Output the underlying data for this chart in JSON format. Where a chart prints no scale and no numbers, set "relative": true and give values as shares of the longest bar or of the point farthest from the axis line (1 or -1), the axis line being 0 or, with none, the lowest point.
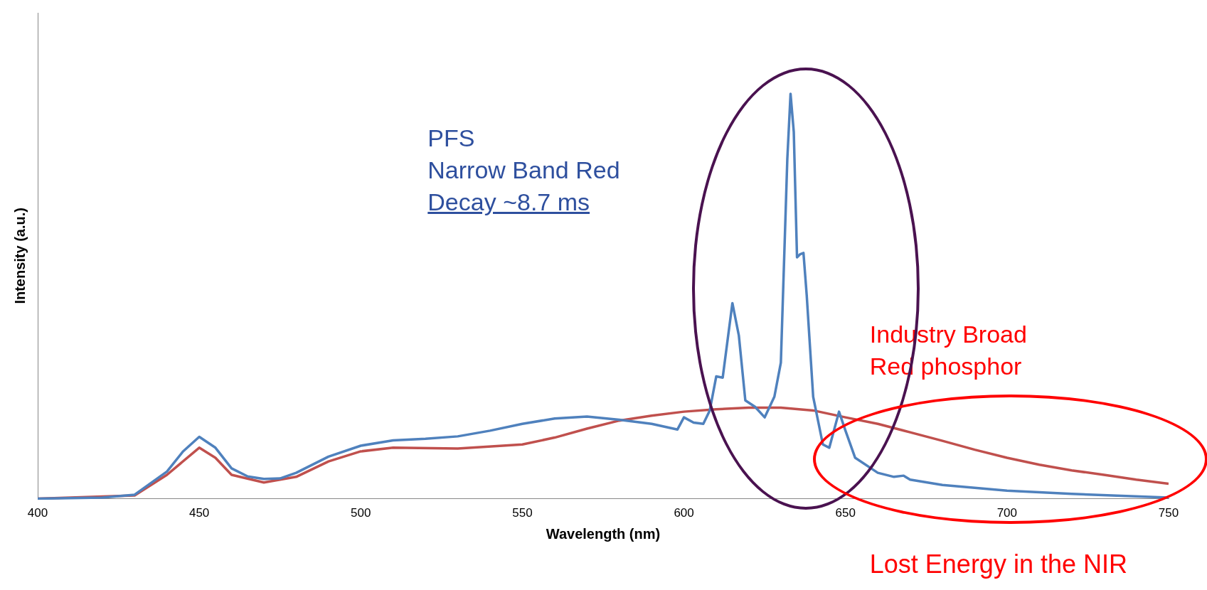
{
  "chart_data": {
    "type": "line",
    "xlabel": "Wavelength (nm)",
    "ylabel": "Intensity (a.u.)",
    "relative": true,
    "xlim": [
      400,
      750
    ],
    "xticks": [
      400,
      450,
      500,
      550,
      600,
      650,
      700,
      750
    ],
    "grid": false,
    "legend": false,
    "marker": "none",
    "line_style": "solid",
    "annotations": [
      "PFS",
      "Narrow Band Red",
      "Decay ~8.7 ms",
      "Industry Broad Red phosphor",
      "Lost Energy in the NIR"
    ],
    "series": [
      {
        "color": "#4f81bd",
        "x": [
          400,
          420,
          430,
          440,
          445,
          450,
          455,
          460,
          465,
          470,
          475,
          480,
          490,
          500,
          510,
          520,
          530,
          540,
          550,
          560,
          570,
          580,
          590,
          598,
          600,
          603,
          606,
          608,
          610,
          612,
          615,
          617,
          619,
          622,
          625,
          628,
          630,
          632,
          633,
          634,
          635,
          636,
          637,
          638,
          640,
          643,
          645,
          648,
          650,
          653,
          660,
          665,
          668,
          670,
          680,
          700,
          720,
          750
        ],
        "values": [
          0,
          0.003,
          0.01,
          0.067,
          0.117,
          0.153,
          0.126,
          0.075,
          0.055,
          0.049,
          0.05,
          0.064,
          0.104,
          0.131,
          0.144,
          0.148,
          0.154,
          0.168,
          0.185,
          0.198,
          0.203,
          0.195,
          0.185,
          0.171,
          0.201,
          0.188,
          0.185,
          0.218,
          0.302,
          0.299,
          0.483,
          0.403,
          0.243,
          0.227,
          0.201,
          0.252,
          0.336,
          0.839,
          1,
          0.906,
          0.596,
          0.604,
          0.607,
          0.503,
          0.252,
          0.134,
          0.126,
          0.215,
          0.168,
          0.101,
          0.064,
          0.054,
          0.057,
          0.047,
          0.034,
          0.02,
          0.012,
          0.003
        ]
      },
      {
        "color": "#c0504d",
        "x": [
          400,
          430,
          440,
          450,
          455,
          460,
          470,
          480,
          490,
          500,
          510,
          530,
          550,
          560,
          570,
          580,
          590,
          600,
          610,
          620,
          630,
          640,
          650,
          660,
          670,
          680,
          690,
          700,
          710,
          720,
          730,
          740,
          750
        ],
        "values": [
          0,
          0.008,
          0.059,
          0.126,
          0.101,
          0.059,
          0.04,
          0.054,
          0.092,
          0.117,
          0.126,
          0.124,
          0.134,
          0.151,
          0.173,
          0.193,
          0.205,
          0.215,
          0.221,
          0.225,
          0.225,
          0.218,
          0.201,
          0.185,
          0.164,
          0.143,
          0.121,
          0.101,
          0.084,
          0.07,
          0.059,
          0.047,
          0.037
        ]
      }
    ]
  }
}
